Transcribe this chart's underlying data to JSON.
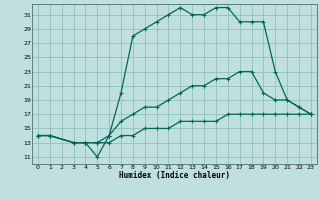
{
  "xlabel": "Humidex (Indice chaleur)",
  "bg_color": "#c0e0e0",
  "grid_color": "#90c0c0",
  "line_color": "#006858",
  "xlim": [
    -0.5,
    23.5
  ],
  "ylim": [
    10.0,
    32.5
  ],
  "xticks": [
    0,
    1,
    2,
    3,
    4,
    5,
    6,
    7,
    8,
    9,
    10,
    11,
    12,
    13,
    14,
    15,
    16,
    17,
    18,
    19,
    20,
    21,
    22,
    23
  ],
  "yticks": [
    11,
    13,
    15,
    17,
    19,
    21,
    23,
    25,
    27,
    29,
    31
  ],
  "line1_x": [
    0,
    1,
    3,
    4,
    5,
    6,
    7,
    8,
    9,
    10,
    11,
    12,
    13,
    14,
    15,
    16,
    17,
    18,
    19,
    20,
    21,
    22,
    23
  ],
  "line1_y": [
    14,
    14,
    13,
    13,
    11,
    14,
    20,
    28,
    29,
    30,
    31,
    32,
    31,
    31,
    32,
    32,
    30,
    30,
    30,
    23,
    19,
    18,
    17
  ],
  "line2_x": [
    0,
    1,
    3,
    4,
    5,
    6,
    7,
    8,
    9,
    10,
    11,
    12,
    13,
    14,
    15,
    16,
    17,
    18,
    19,
    20,
    21,
    22,
    23
  ],
  "line2_y": [
    14,
    14,
    13,
    13,
    13,
    14,
    16,
    17,
    18,
    18,
    19,
    20,
    21,
    21,
    22,
    22,
    23,
    23,
    20,
    19,
    19,
    18,
    17
  ],
  "line3_x": [
    0,
    1,
    3,
    4,
    5,
    6,
    7,
    8,
    9,
    10,
    11,
    12,
    13,
    14,
    15,
    16,
    17,
    18,
    19,
    20,
    21,
    22,
    23
  ],
  "line3_y": [
    14,
    14,
    13,
    13,
    13,
    13,
    14,
    14,
    15,
    15,
    15,
    16,
    16,
    16,
    16,
    17,
    17,
    17,
    17,
    17,
    17,
    17,
    17
  ]
}
